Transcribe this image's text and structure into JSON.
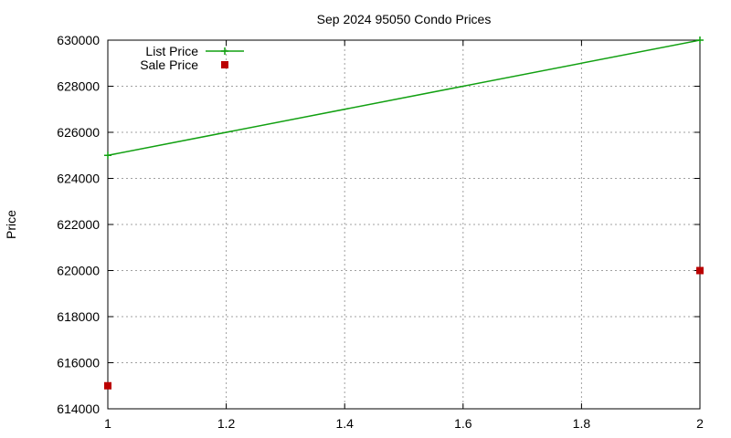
{
  "chart_data": {
    "type": "line",
    "title": "Sep 2024 95050 Condo Prices",
    "xlabel": "",
    "ylabel": "Price",
    "xlim": [
      1,
      2
    ],
    "ylim": [
      614000,
      630000
    ],
    "x_ticks": [
      1,
      1.2,
      1.4,
      1.6,
      1.8,
      2
    ],
    "x_tick_labels": [
      "1",
      "1.2",
      "1.4",
      "1.6",
      "1.8",
      "2"
    ],
    "y_ticks": [
      614000,
      616000,
      618000,
      620000,
      622000,
      624000,
      626000,
      628000,
      630000
    ],
    "y_tick_labels": [
      "614000",
      "616000",
      "618000",
      "620000",
      "622000",
      "624000",
      "626000",
      "628000",
      "630000"
    ],
    "grid": true,
    "legend_position": "top-left",
    "series": [
      {
        "name": "List Price",
        "style": "linespoints",
        "marker": "plus",
        "color": "#11a011",
        "points": [
          {
            "x": 1,
            "y": 625000
          },
          {
            "x": 2,
            "y": 630000
          }
        ]
      },
      {
        "name": "Sale Price",
        "style": "points",
        "marker": "square",
        "color": "#bb0000",
        "points": [
          {
            "x": 1,
            "y": 615000
          },
          {
            "x": 2,
            "y": 620000
          }
        ]
      }
    ]
  }
}
